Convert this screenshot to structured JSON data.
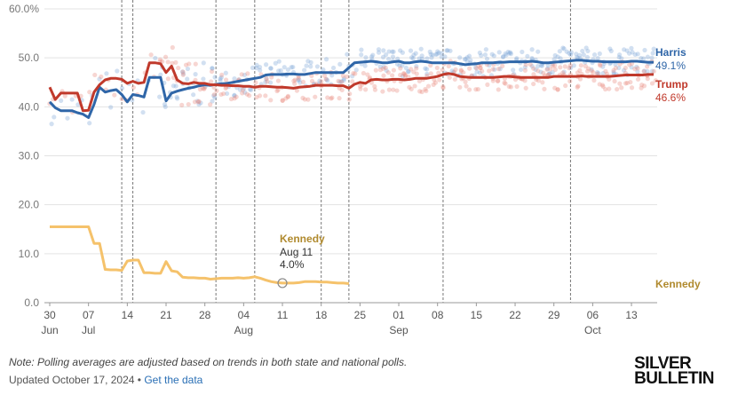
{
  "chart_data": {
    "type": "line",
    "title": "",
    "ylim": [
      0,
      60
    ],
    "yticks": [
      "0.0",
      "10.0",
      "20.0",
      "30.0",
      "40.0",
      "50.0",
      "60.0%"
    ],
    "ytick_values": [
      0,
      10,
      20,
      30,
      40,
      50,
      60
    ],
    "x_start_day": 0,
    "x_end_day": 109,
    "x_ticks": [
      {
        "day": 0,
        "label": "30",
        "month": "Jun"
      },
      {
        "day": 7,
        "label": "07",
        "month": "Jul"
      },
      {
        "day": 14,
        "label": "14"
      },
      {
        "day": 21,
        "label": "21"
      },
      {
        "day": 28,
        "label": "28"
      },
      {
        "day": 35,
        "label": "04",
        "month": "Aug"
      },
      {
        "day": 42,
        "label": "11"
      },
      {
        "day": 49,
        "label": "18"
      },
      {
        "day": 56,
        "label": "25"
      },
      {
        "day": 63,
        "label": "01",
        "month": "Sep"
      },
      {
        "day": 70,
        "label": "08"
      },
      {
        "day": 77,
        "label": "15"
      },
      {
        "day": 84,
        "label": "22"
      },
      {
        "day": 91,
        "label": "29"
      },
      {
        "day": 98,
        "label": "06",
        "month": "Oct"
      },
      {
        "day": 105,
        "label": "13"
      }
    ],
    "event_days": [
      13,
      15,
      30,
      37,
      49,
      54,
      71,
      94
    ],
    "series": [
      {
        "name": "Harris",
        "color": "#2f66a8",
        "end_label": "49.1%",
        "points": [
          [
            0,
            41
          ],
          [
            1,
            39.8
          ],
          [
            2,
            39.2
          ],
          [
            3,
            39.2
          ],
          [
            4,
            39.2
          ],
          [
            5,
            38.8
          ],
          [
            6,
            38.5
          ],
          [
            7,
            37.8
          ],
          [
            8,
            40.5
          ],
          [
            9,
            44
          ],
          [
            10,
            43
          ],
          [
            11,
            43.3
          ],
          [
            12,
            43.5
          ],
          [
            13,
            42.5
          ],
          [
            14,
            41
          ],
          [
            15,
            42.5
          ],
          [
            16,
            42.3
          ],
          [
            17,
            42
          ],
          [
            18,
            46
          ],
          [
            19,
            46
          ],
          [
            20,
            46
          ],
          [
            21,
            41.2
          ],
          [
            22,
            42.8
          ],
          [
            23,
            43.2
          ],
          [
            24,
            43.5
          ],
          [
            25,
            43.8
          ],
          [
            26,
            44
          ],
          [
            27,
            44.3
          ],
          [
            28,
            44.5
          ],
          [
            29,
            44.4
          ],
          [
            30,
            44.6
          ],
          [
            31,
            44.7
          ],
          [
            32,
            44.8
          ],
          [
            33,
            45
          ],
          [
            34,
            45.2
          ],
          [
            35,
            45.4
          ],
          [
            36,
            45.6
          ],
          [
            37,
            45.8
          ],
          [
            38,
            46
          ],
          [
            39,
            46.5
          ],
          [
            40,
            46.6
          ],
          [
            41,
            46.6
          ],
          [
            42,
            46.6
          ],
          [
            43,
            46.7
          ],
          [
            44,
            46.7
          ],
          [
            45,
            46.6
          ],
          [
            46,
            46.6
          ],
          [
            47,
            46.8
          ],
          [
            48,
            47
          ],
          [
            49,
            47
          ],
          [
            50,
            47
          ],
          [
            51,
            47
          ],
          [
            52,
            47
          ],
          [
            53,
            47
          ],
          [
            54,
            48
          ],
          [
            55,
            49
          ],
          [
            56,
            49.1
          ],
          [
            57,
            49.2
          ],
          [
            58,
            49.3
          ],
          [
            59,
            49.2
          ],
          [
            60,
            49
          ],
          [
            61,
            49
          ],
          [
            62,
            49.2
          ],
          [
            63,
            49.3
          ],
          [
            64,
            49
          ],
          [
            65,
            49
          ],
          [
            66,
            49.2
          ],
          [
            67,
            49.3
          ],
          [
            68,
            49.2
          ],
          [
            69,
            49
          ],
          [
            70,
            49
          ],
          [
            71,
            49
          ],
          [
            72,
            49
          ],
          [
            73,
            49
          ],
          [
            74,
            48.8
          ],
          [
            75,
            48.6
          ],
          [
            76,
            48.7
          ],
          [
            77,
            48.8
          ],
          [
            78,
            49
          ],
          [
            79,
            49
          ],
          [
            80,
            49
          ],
          [
            81,
            49.1
          ],
          [
            82,
            49.1
          ],
          [
            83,
            49.2
          ],
          [
            84,
            49.2
          ],
          [
            85,
            49.2
          ],
          [
            86,
            49.2
          ],
          [
            87,
            49.3
          ],
          [
            88,
            49.2
          ],
          [
            89,
            49
          ],
          [
            90,
            49
          ],
          [
            91,
            49.1
          ],
          [
            92,
            49.2
          ],
          [
            93,
            49.3
          ],
          [
            94,
            49.4
          ],
          [
            95,
            49.5
          ],
          [
            96,
            49.5
          ],
          [
            97,
            49.4
          ],
          [
            98,
            49.3
          ],
          [
            99,
            49.3
          ],
          [
            100,
            49.2
          ],
          [
            101,
            49.2
          ],
          [
            102,
            49.2
          ],
          [
            103,
            49.2
          ],
          [
            104,
            49.2
          ],
          [
            105,
            49.3
          ],
          [
            106,
            49.3
          ],
          [
            107,
            49.2
          ],
          [
            108,
            49.1
          ],
          [
            109,
            49.1
          ]
        ]
      },
      {
        "name": "Trump",
        "color": "#c0392b",
        "end_label": "46.6%",
        "points": [
          [
            0,
            44
          ],
          [
            1,
            41.5
          ],
          [
            2,
            42.8
          ],
          [
            3,
            42.8
          ],
          [
            4,
            42.8
          ],
          [
            5,
            42.8
          ],
          [
            6,
            39.2
          ],
          [
            7,
            39.3
          ],
          [
            8,
            43
          ],
          [
            9,
            44.5
          ],
          [
            10,
            45.5
          ],
          [
            11,
            45.8
          ],
          [
            12,
            45.8
          ],
          [
            13,
            45.6
          ],
          [
            14,
            44.8
          ],
          [
            15,
            45.2
          ],
          [
            16,
            44.8
          ],
          [
            17,
            45
          ],
          [
            18,
            49
          ],
          [
            19,
            49
          ],
          [
            20,
            48.8
          ],
          [
            21,
            47
          ],
          [
            22,
            48.3
          ],
          [
            23,
            45.5
          ],
          [
            24,
            44.8
          ],
          [
            25,
            44.7
          ],
          [
            26,
            45
          ],
          [
            27,
            44.8
          ],
          [
            28,
            44.8
          ],
          [
            29,
            44.5
          ],
          [
            30,
            44.5
          ],
          [
            31,
            44.4
          ],
          [
            32,
            44.4
          ],
          [
            33,
            44.3
          ],
          [
            34,
            44.3
          ],
          [
            35,
            44.2
          ],
          [
            36,
            44.2
          ],
          [
            37,
            44
          ],
          [
            38,
            44.2
          ],
          [
            39,
            44.2
          ],
          [
            40,
            44.1
          ],
          [
            41,
            44
          ],
          [
            42,
            44
          ],
          [
            43,
            43.9
          ],
          [
            44,
            43.8
          ],
          [
            45,
            44
          ],
          [
            46,
            44.1
          ],
          [
            47,
            44.2
          ],
          [
            48,
            44.4
          ],
          [
            49,
            44.4
          ],
          [
            50,
            44.4
          ],
          [
            51,
            44.4
          ],
          [
            52,
            44.3
          ],
          [
            53,
            44.3
          ],
          [
            54,
            43.8
          ],
          [
            55,
            44.6
          ],
          [
            56,
            45
          ],
          [
            57,
            44.8
          ],
          [
            58,
            45.5
          ],
          [
            59,
            45.6
          ],
          [
            60,
            45.5
          ],
          [
            61,
            45.5
          ],
          [
            62,
            45.6
          ],
          [
            63,
            45.6
          ],
          [
            64,
            45.5
          ],
          [
            65,
            45.6
          ],
          [
            66,
            45.8
          ],
          [
            67,
            45.8
          ],
          [
            68,
            45.8
          ],
          [
            69,
            46
          ],
          [
            70,
            46.2
          ],
          [
            71,
            46.6
          ],
          [
            72,
            46.8
          ],
          [
            73,
            46.6
          ],
          [
            74,
            46.2
          ],
          [
            75,
            46.1
          ],
          [
            76,
            46
          ],
          [
            77,
            46
          ],
          [
            78,
            46
          ],
          [
            79,
            46
          ],
          [
            80,
            46
          ],
          [
            81,
            46.1
          ],
          [
            82,
            46.2
          ],
          [
            83,
            46.2
          ],
          [
            84,
            46.1
          ],
          [
            85,
            46
          ],
          [
            86,
            46
          ],
          [
            87,
            46
          ],
          [
            88,
            46
          ],
          [
            89,
            46
          ],
          [
            90,
            46
          ],
          [
            91,
            46.2
          ],
          [
            92,
            46.2
          ],
          [
            93,
            46.2
          ],
          [
            94,
            46.2
          ],
          [
            95,
            46.2
          ],
          [
            96,
            46.3
          ],
          [
            97,
            46.2
          ],
          [
            98,
            46.2
          ],
          [
            99,
            46.2
          ],
          [
            100,
            46.2
          ],
          [
            101,
            46.2
          ],
          [
            102,
            46.3
          ],
          [
            103,
            46.4
          ],
          [
            104,
            46.5
          ],
          [
            105,
            46.5
          ],
          [
            106,
            46.5
          ],
          [
            107,
            46.5
          ],
          [
            108,
            46.6
          ],
          [
            109,
            46.6
          ]
        ]
      },
      {
        "name": "Kennedy",
        "color": "#f5c26b",
        "end_label": "",
        "points": [
          [
            0,
            15.5
          ],
          [
            1,
            15.5
          ],
          [
            2,
            15.5
          ],
          [
            3,
            15.5
          ],
          [
            4,
            15.5
          ],
          [
            5,
            15.5
          ],
          [
            6,
            15.5
          ],
          [
            7,
            15.5
          ],
          [
            8,
            12.1
          ],
          [
            9,
            12.1
          ],
          [
            10,
            6.8
          ],
          [
            11,
            6.7
          ],
          [
            12,
            6.7
          ],
          [
            13,
            6.6
          ],
          [
            14,
            8.5
          ],
          [
            15,
            8.7
          ],
          [
            16,
            8.7
          ],
          [
            17,
            6.1
          ],
          [
            18,
            6.1
          ],
          [
            19,
            6
          ],
          [
            20,
            6
          ],
          [
            21,
            8.4
          ],
          [
            22,
            6.5
          ],
          [
            23,
            6.3
          ],
          [
            24,
            5.2
          ],
          [
            25,
            5.1
          ],
          [
            26,
            5.1
          ],
          [
            27,
            5
          ],
          [
            28,
            5
          ],
          [
            29,
            4.8
          ],
          [
            30,
            4.9
          ],
          [
            31,
            5
          ],
          [
            32,
            5
          ],
          [
            33,
            5
          ],
          [
            34,
            5.1
          ],
          [
            35,
            5
          ],
          [
            36,
            5.1
          ],
          [
            37,
            5.3
          ],
          [
            38,
            5
          ],
          [
            39,
            4.6
          ],
          [
            40,
            4.3
          ],
          [
            41,
            4.1
          ],
          [
            42,
            4
          ],
          [
            43,
            4
          ],
          [
            44,
            4
          ],
          [
            45,
            4.1
          ],
          [
            46,
            4.3
          ],
          [
            47,
            4.3
          ],
          [
            48,
            4.3
          ],
          [
            49,
            4.2
          ],
          [
            50,
            4.2
          ],
          [
            51,
            4.1
          ],
          [
            52,
            4
          ],
          [
            53,
            4
          ],
          [
            54,
            3.9
          ]
        ]
      }
    ],
    "poll_dots": {
      "harris_color": "#7fa6d6",
      "trump_color": "#e88a7e"
    },
    "annotation": {
      "name": "Kennedy",
      "date": "Aug 11",
      "value": "4.0%",
      "day": 42,
      "y": 4.0
    },
    "legend_position": "right",
    "grid": true
  },
  "labels": {
    "harris": "Harris",
    "harris_value": "49.1%",
    "trump": "Trump",
    "trump_value": "46.6%",
    "kennedy": "Kennedy"
  },
  "colors": {
    "harris": "#2f66a8",
    "trump": "#c0392b",
    "kennedy": "#f5c26b",
    "kennedy_text": "#b08a2e"
  },
  "footer": {
    "note": "Note: Polling averages are adjusted based on trends in both state and national polls.",
    "updated": "Updated October 17, 2024 • ",
    "link": "Get the data",
    "logo_line1": "SILVER",
    "logo_line2": "BULLETIN"
  }
}
